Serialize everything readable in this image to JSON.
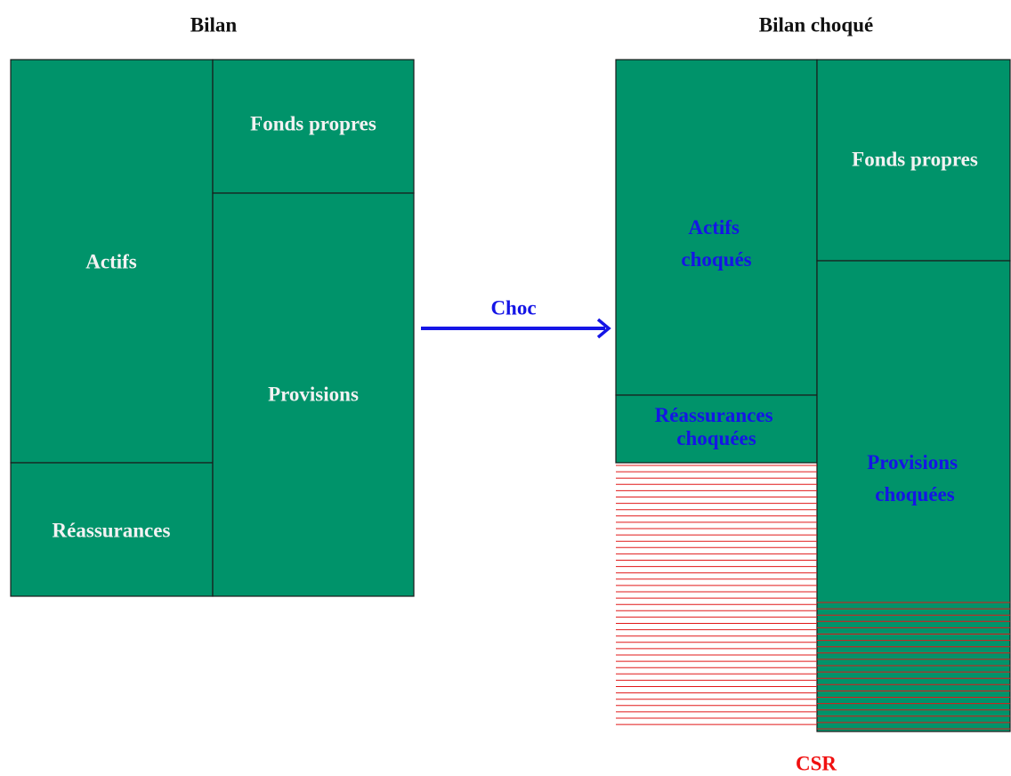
{
  "left": {
    "title": "Bilan",
    "actifs": "Actifs",
    "reassurances": "Réassurances",
    "fonds_propres": "Fonds propres",
    "provisions": "Provisions"
  },
  "arrow_label": "Choc",
  "right": {
    "title": "Bilan choqué",
    "actifs": [
      "Actifs",
      "choqués"
    ],
    "reassurances": [
      "Réassurances",
      "choquées"
    ],
    "fonds_propres": "Fonds propres",
    "provisions": [
      "Provisions",
      "choquées"
    ],
    "csr": "CSR"
  }
}
